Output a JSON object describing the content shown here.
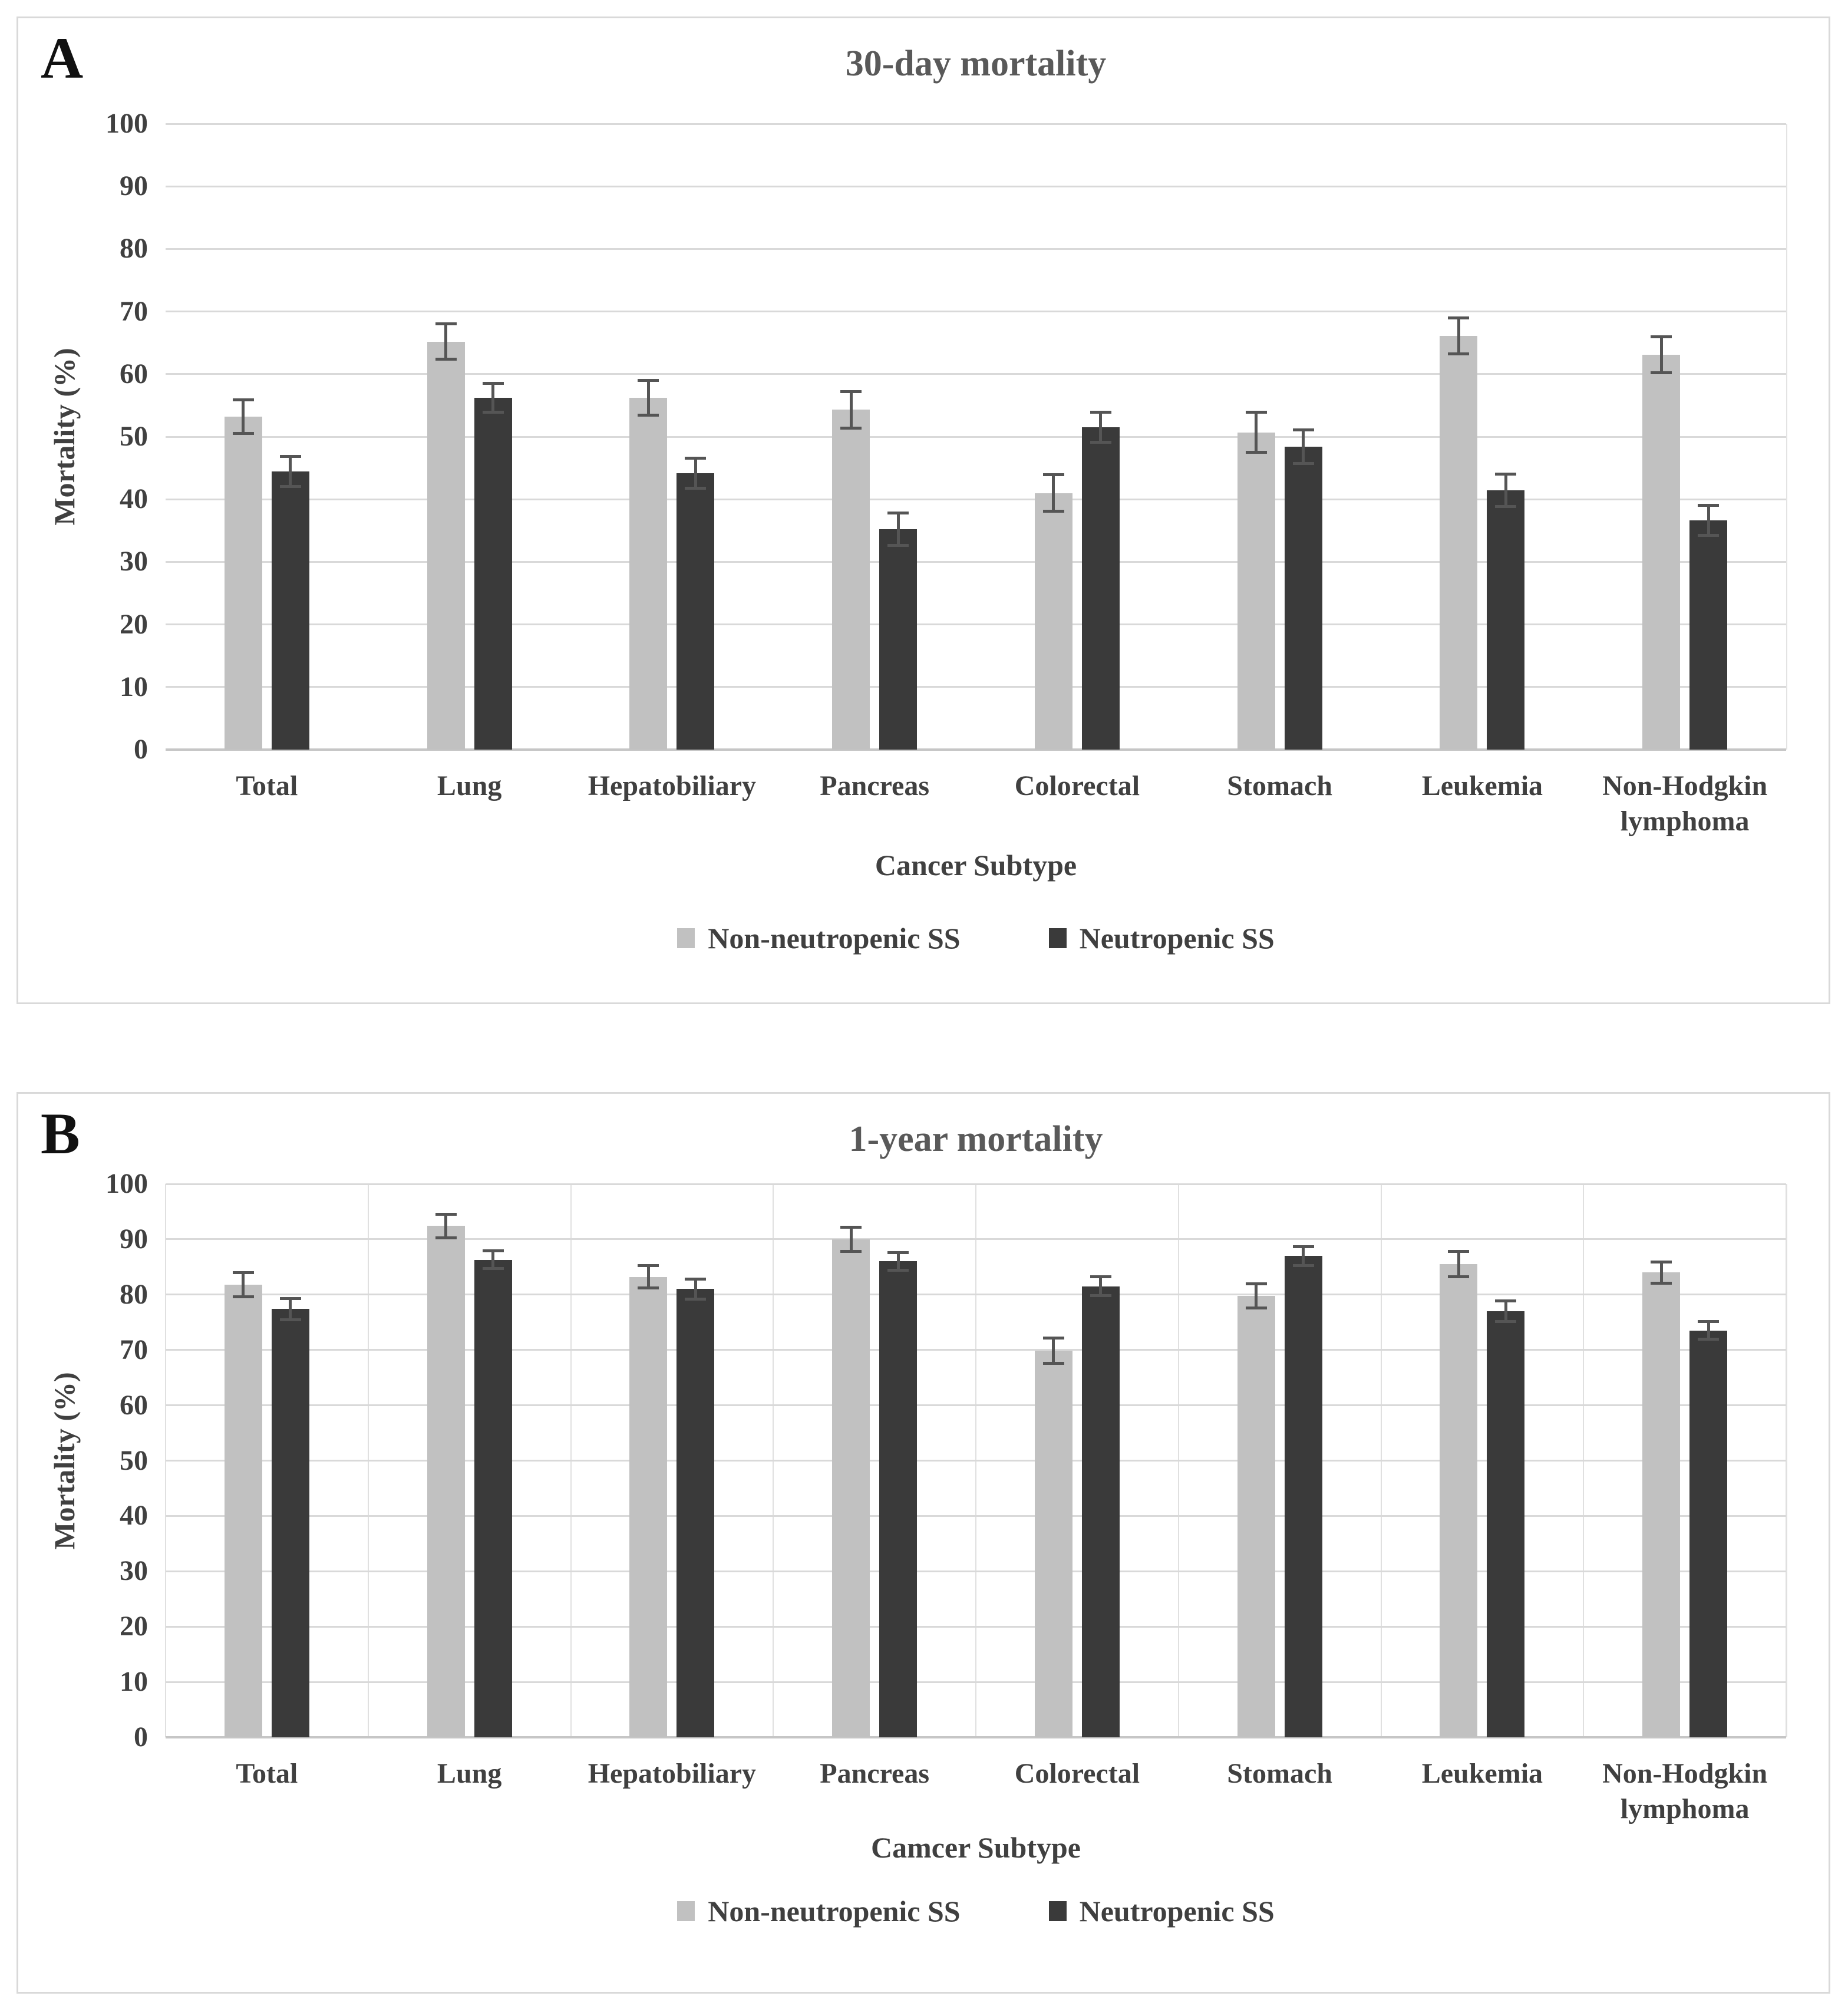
{
  "figure": {
    "colors": {
      "non_neutropenic_bar": "#c1c1c1",
      "neutropenic_bar": "#3a3a3a",
      "gridline": "#d9d9d9",
      "baseline": "#c6c6c6",
      "error_bar": "#555555",
      "title_text": "#595959",
      "axis_text": "#404040",
      "panel_border": "#d9d9d9"
    }
  },
  "chart_data": [
    {
      "type": "bar",
      "panel_letter": "A",
      "title": "30-day mortality",
      "xlabel": "Cancer Subtype",
      "ylabel": "Mortality (%)",
      "ylim": [
        0,
        100
      ],
      "ytick_step": 10,
      "grid": true,
      "vertical_gridlines": false,
      "legend_position": "bottom",
      "categories": [
        "Total",
        "Lung",
        "Hepatobiliary",
        "Pancreas",
        "Colorectal",
        "Stomach",
        "Leukemia",
        "Non-Hodgkin lymphoma"
      ],
      "series": [
        {
          "name": "Non-neutropenic SS",
          "values": [
            53.2,
            65.2,
            56.2,
            54.3,
            41.0,
            50.7,
            66.1,
            63.1
          ],
          "errors": [
            2.7,
            2.8,
            2.8,
            2.9,
            2.9,
            3.2,
            2.9,
            2.9
          ]
        },
        {
          "name": "Neutropenic SS",
          "values": [
            44.4,
            56.2,
            44.2,
            35.2,
            51.5,
            48.4,
            41.4,
            36.6
          ],
          "errors": [
            2.4,
            2.3,
            2.4,
            2.6,
            2.4,
            2.7,
            2.6,
            2.4
          ]
        }
      ]
    },
    {
      "type": "bar",
      "panel_letter": "B",
      "title": "1-year mortality",
      "xlabel": "Camcer Subtype",
      "ylabel": "Mortality (%)",
      "ylim": [
        0,
        100
      ],
      "ytick_step": 10,
      "grid": true,
      "vertical_gridlines": true,
      "legend_position": "bottom",
      "categories": [
        "Total",
        "Lung",
        "Hepatobiliary",
        "Pancreas",
        "Colorectal",
        "Stomach",
        "Leukemia",
        "Non-Hodgkin lymphoma"
      ],
      "series": [
        {
          "name": "Non-neutropenic SS",
          "values": [
            81.8,
            92.4,
            83.2,
            90.0,
            69.9,
            79.8,
            85.5,
            84.0
          ],
          "errors": [
            2.2,
            2.1,
            2.0,
            2.2,
            2.3,
            2.2,
            2.3,
            1.9
          ]
        },
        {
          "name": "Neutropenic SS",
          "values": [
            77.4,
            86.3,
            81.0,
            86.0,
            81.5,
            87.0,
            77.0,
            73.5
          ],
          "errors": [
            1.9,
            1.6,
            1.8,
            1.6,
            1.7,
            1.7,
            1.9,
            1.6
          ]
        }
      ]
    }
  ]
}
